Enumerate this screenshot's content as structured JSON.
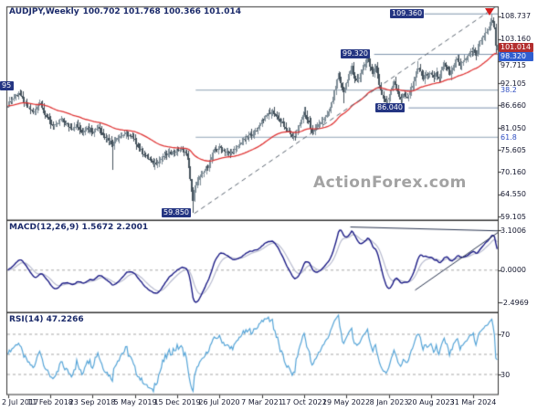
{
  "header": {
    "symbol": "AUDJPY,Weekly",
    "ohlc": "100.702 101.768 100.366 101.014"
  },
  "watermark": "ActionForex.com",
  "panels": {
    "macd": {
      "label": "MACD(12,26,9) 1.5672 2.2001",
      "axis": [
        "3.1006",
        "0.0000",
        "-2.4969"
      ]
    },
    "rsi": {
      "label": "RSI(14) 47.2266",
      "axis": [
        "70",
        "30"
      ]
    }
  },
  "price_axis": {
    "ticks": [
      "108.737",
      "103.160",
      "97.715",
      "92.105",
      "86.660",
      "81.050",
      "75.605",
      "70.160",
      "64.550",
      "59.105"
    ],
    "current": {
      "text": "101.014",
      "color": "#b32f2f"
    },
    "ema_box": {
      "text": "98.320",
      "color": "#2f5ed0"
    },
    "fib_texts": [
      "38.2",
      "61.8"
    ]
  },
  "annotations": {
    "swing_labels": [
      {
        "text": "109.360"
      },
      {
        "text": "99.320"
      },
      {
        "text": "86.040"
      },
      {
        "text": "59.850"
      },
      {
        "text": "95"
      }
    ]
  },
  "chart_data": {
    "type": "candlestick",
    "symbol": "AUDJPY",
    "timeframe": "Weekly",
    "weeks": 371,
    "price_axis_top": 111.0,
    "price_axis_bottom": 58.2,
    "x_tick_weeks": [
      0,
      32,
      64,
      96,
      128,
      160,
      192,
      224,
      256,
      288,
      320,
      352
    ],
    "x_tick_labels": [
      "2 Jul 2017",
      "11 Feb 2018",
      "23 Sep 2018",
      "5 May 2019",
      "15 Dec 2019",
      "26 Jul 2020",
      "7 Mar 2021",
      "17 Oct 2021",
      "29 May 2022",
      "8 Jan 2023",
      "20 Aug 2023",
      "31 Mar 2024"
    ],
    "close_anchors": [
      [
        0,
        87.0
      ],
      [
        4,
        88.5
      ],
      [
        8,
        89.9
      ],
      [
        12,
        87.5
      ],
      [
        16,
        85.8
      ],
      [
        20,
        84.9
      ],
      [
        24,
        87.6
      ],
      [
        28,
        84.5
      ],
      [
        32,
        82.3
      ],
      [
        36,
        81.5
      ],
      [
        40,
        83.2
      ],
      [
        44,
        82.0
      ],
      [
        48,
        81.0
      ],
      [
        52,
        81.8
      ],
      [
        56,
        79.8
      ],
      [
        60,
        81.3
      ],
      [
        64,
        80.2
      ],
      [
        68,
        81.5
      ],
      [
        72,
        79.5
      ],
      [
        76,
        78.2
      ],
      [
        79,
        77.0
      ],
      [
        82,
        78.5
      ],
      [
        86,
        79.3
      ],
      [
        90,
        79.8
      ],
      [
        94,
        78.5
      ],
      [
        98,
        76.8
      ],
      [
        102,
        75.0
      ],
      [
        106,
        73.5
      ],
      [
        110,
        72.2
      ],
      [
        114,
        72.8
      ],
      [
        118,
        74.0
      ],
      [
        122,
        74.8
      ],
      [
        126,
        75.3
      ],
      [
        130,
        75.8
      ],
      [
        134,
        75.2
      ],
      [
        136,
        73.5
      ],
      [
        138,
        68.0
      ],
      [
        140,
        63.0
      ],
      [
        141,
        65.5
      ],
      [
        144,
        68.5
      ],
      [
        148,
        70.0
      ],
      [
        152,
        72.2
      ],
      [
        156,
        75.5
      ],
      [
        160,
        76.2
      ],
      [
        164,
        75.4
      ],
      [
        168,
        74.8
      ],
      [
        172,
        75.6
      ],
      [
        176,
        77.3
      ],
      [
        180,
        78.6
      ],
      [
        184,
        79.6
      ],
      [
        188,
        80.5
      ],
      [
        192,
        83.0
      ],
      [
        196,
        84.3
      ],
      [
        200,
        85.3
      ],
      [
        204,
        83.6
      ],
      [
        208,
        81.8
      ],
      [
        212,
        80.2
      ],
      [
        216,
        78.6
      ],
      [
        220,
        81.5
      ],
      [
        224,
        85.0
      ],
      [
        228,
        82.2
      ],
      [
        230,
        79.6
      ],
      [
        234,
        81.5
      ],
      [
        238,
        83.0
      ],
      [
        242,
        84.5
      ],
      [
        246,
        88.5
      ],
      [
        250,
        94.5
      ],
      [
        252,
        92.0
      ],
      [
        254,
        89.5
      ],
      [
        256,
        91.8
      ],
      [
        258,
        94.8
      ],
      [
        260,
        96.3
      ],
      [
        262,
        93.2
      ],
      [
        264,
        92.5
      ],
      [
        266,
        94.0
      ],
      [
        268,
        95.5
      ],
      [
        270,
        97.0
      ],
      [
        272,
        98.7
      ],
      [
        274,
        96.3
      ],
      [
        276,
        94.5
      ],
      [
        278,
        96.5
      ],
      [
        280,
        93.5
      ],
      [
        282,
        90.5
      ],
      [
        284,
        88.5
      ],
      [
        286,
        87.5
      ],
      [
        288,
        88.8
      ],
      [
        290,
        90.5
      ],
      [
        292,
        92.3
      ],
      [
        294,
        90.8
      ],
      [
        296,
        88.3
      ],
      [
        298,
        88.8
      ],
      [
        300,
        89.6
      ],
      [
        302,
        88.4
      ],
      [
        304,
        90.0
      ],
      [
        306,
        91.8
      ],
      [
        308,
        93.6
      ],
      [
        310,
        95.8
      ],
      [
        312,
        95.3
      ],
      [
        314,
        93.0
      ],
      [
        316,
        94.8
      ],
      [
        318,
        93.8
      ],
      [
        320,
        94.5
      ],
      [
        322,
        93.2
      ],
      [
        324,
        94.8
      ],
      [
        326,
        93.1
      ],
      [
        328,
        95.3
      ],
      [
        330,
        96.8
      ],
      [
        332,
        96.0
      ],
      [
        334,
        94.3
      ],
      [
        336,
        95.6
      ],
      [
        338,
        97.2
      ],
      [
        340,
        97.9
      ],
      [
        342,
        96.6
      ],
      [
        344,
        97.5
      ],
      [
        346,
        98.3
      ],
      [
        348,
        99.3
      ],
      [
        350,
        99.9
      ],
      [
        352,
        100.3
      ],
      [
        354,
        99.2
      ],
      [
        356,
        101.5
      ],
      [
        358,
        103.2
      ],
      [
        360,
        104.0
      ],
      [
        362,
        104.9
      ],
      [
        364,
        106.3
      ],
      [
        366,
        107.9
      ],
      [
        367,
        107.1
      ],
      [
        368,
        106.0
      ],
      [
        369,
        101.5
      ],
      [
        370,
        101.014
      ]
    ],
    "events": [
      {
        "week": 79,
        "low": 70.7
      },
      {
        "week": 140,
        "low": 59.85
      },
      {
        "week": 216,
        "low": 77.9
      },
      {
        "week": 224,
        "high": 86.25
      },
      {
        "week": 254,
        "low": 87.3
      },
      {
        "week": 272,
        "high": 99.32
      },
      {
        "week": 286,
        "low": 86.04
      },
      {
        "week": 310,
        "high": 97.6
      },
      {
        "week": 366,
        "high": 109.36
      },
      {
        "week": 369,
        "low": 99.8
      }
    ],
    "last_candle": {
      "open": 100.702,
      "high": 101.768,
      "low": 100.366,
      "close": 101.014
    },
    "ema_period": 55,
    "macd": {
      "fast": 12,
      "slow": 26,
      "signal": 9,
      "axis_max": 3.1006,
      "axis_min": -2.4969,
      "last": 1.5672,
      "last_signal": 2.2001
    },
    "rsi": {
      "period": 14,
      "last": 47.2266,
      "levels": [
        70,
        50,
        30
      ]
    },
    "fib_levels": [
      {
        "label": "38.2",
        "price": 90.45,
        "from_week": 142
      },
      {
        "label": "61.8",
        "price": 78.76,
        "from_week": 142
      }
    ],
    "level_lines": [
      {
        "price": 109.36,
        "from_week": 315
      },
      {
        "price": 99.32,
        "from_week": 277
      },
      {
        "price": 86.04,
        "from_week": 303
      }
    ],
    "trendline_main": {
      "from_week": 141,
      "from_price": 59.85,
      "to_week": 371,
      "to_price": 111.6,
      "style": "dashed"
    },
    "macd_trendlines": [
      {
        "from": [
          259,
          3.35
        ],
        "to": [
          371,
          3.05
        ]
      },
      {
        "from": [
          308,
          -1.55
        ],
        "to": [
          371,
          2.95
        ]
      }
    ],
    "colors": {
      "candle_up": "#7f8e98",
      "candle_down": "#45525c",
      "ma": "#e03535",
      "macd_line": "#1c1c86",
      "macd_signal": "#b9bcd0",
      "rsi_line": "#56a5d8",
      "fib": "#8fa3b5",
      "level": "#7d93ad",
      "trend": "#5a6470",
      "grid_dash": "#a8a8a8"
    }
  }
}
